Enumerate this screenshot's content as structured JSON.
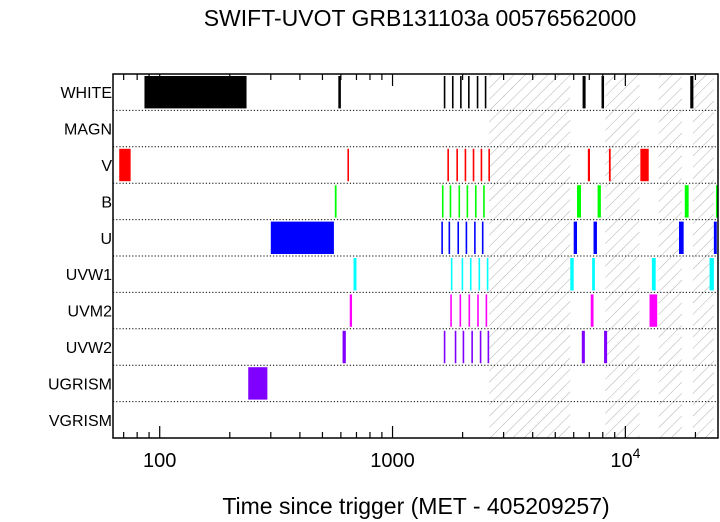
{
  "chart_data": {
    "type": "timeline",
    "title": "SWIFT-UVOT GRB131103a 00576562000",
    "xlabel": "Time since trigger (MET - 405209257)",
    "ylabel": "",
    "xscale": "log",
    "xlim": [
      63,
      25000
    ],
    "xticks": [
      {
        "value": 100,
        "label": "100"
      },
      {
        "value": 1000,
        "label": "1000"
      },
      {
        "value": 10000,
        "label": "10",
        "exp": "4"
      }
    ],
    "grid": "dotted row separators",
    "filters": [
      {
        "name": "WHITE",
        "color": "#000000",
        "intervals": [
          [
            86,
            236
          ],
          [
            585,
            600
          ],
          [
            1660,
            1680
          ],
          [
            1800,
            1820
          ],
          [
            1950,
            1970
          ],
          [
            2110,
            2130
          ],
          [
            2300,
            2320
          ],
          [
            2490,
            2510
          ],
          [
            6550,
            6750
          ],
          [
            7900,
            8100
          ],
          [
            19000,
            19600
          ]
        ]
      },
      {
        "name": "MAGN",
        "color": "#000000",
        "intervals": []
      },
      {
        "name": "V",
        "color": "#ff0000",
        "intervals": [
          [
            67,
            75
          ],
          [
            640,
            650
          ],
          [
            1720,
            1740
          ],
          [
            1880,
            1900
          ],
          [
            2040,
            2060
          ],
          [
            2210,
            2230
          ],
          [
            2390,
            2410
          ],
          [
            2580,
            2600
          ],
          [
            6900,
            7050
          ],
          [
            8500,
            8650
          ],
          [
            11600,
            12600
          ]
        ]
      },
      {
        "name": "B",
        "color": "#00ff00",
        "intervals": [
          [
            565,
            575
          ],
          [
            1630,
            1650
          ],
          [
            1760,
            1780
          ],
          [
            1920,
            1940
          ],
          [
            2080,
            2100
          ],
          [
            2260,
            2280
          ],
          [
            2450,
            2470
          ],
          [
            6200,
            6450
          ],
          [
            7600,
            7850
          ],
          [
            18000,
            18700
          ],
          [
            24500,
            25000
          ]
        ]
      },
      {
        "name": "U",
        "color": "#0000ff",
        "intervals": [
          [
            300,
            560
          ],
          [
            1620,
            1640
          ],
          [
            1740,
            1760
          ],
          [
            1900,
            1920
          ],
          [
            2060,
            2080
          ],
          [
            2240,
            2260
          ],
          [
            2420,
            2440
          ],
          [
            6000,
            6200
          ],
          [
            7300,
            7550
          ],
          [
            17000,
            17800
          ],
          [
            24000,
            24700
          ]
        ]
      },
      {
        "name": "UVW1",
        "color": "#00ffff",
        "intervals": [
          [
            680,
            700
          ],
          [
            1780,
            1800
          ],
          [
            1980,
            2000
          ],
          [
            2150,
            2170
          ],
          [
            2340,
            2360
          ],
          [
            2540,
            2560
          ],
          [
            5800,
            6000
          ],
          [
            7200,
            7400
          ],
          [
            13000,
            13500
          ],
          [
            23000,
            24000
          ]
        ]
      },
      {
        "name": "UVM2",
        "color": "#ff00ff",
        "intervals": [
          [
            655,
            670
          ],
          [
            1770,
            1790
          ],
          [
            1940,
            1960
          ],
          [
            2120,
            2140
          ],
          [
            2310,
            2330
          ],
          [
            2510,
            2530
          ],
          [
            7100,
            7300
          ],
          [
            12700,
            13700
          ]
        ]
      },
      {
        "name": "UVW2",
        "color": "#8000ff",
        "intervals": [
          [
            610,
            630
          ],
          [
            1660,
            1680
          ],
          [
            1850,
            1870
          ],
          [
            2000,
            2020
          ],
          [
            2180,
            2200
          ],
          [
            2370,
            2390
          ],
          [
            2560,
            2580
          ],
          [
            6500,
            6700
          ],
          [
            8100,
            8350
          ]
        ]
      },
      {
        "name": "UGRISM",
        "color": "#8000ff",
        "intervals": [
          [
            240,
            290
          ]
        ]
      },
      {
        "name": "VGRISM",
        "color": "#000000",
        "intervals": []
      }
    ],
    "hatched_intervals": [
      [
        2600,
        5800
      ],
      [
        8200,
        11500
      ],
      [
        13900,
        17500
      ],
      [
        19500,
        24000
      ]
    ]
  }
}
